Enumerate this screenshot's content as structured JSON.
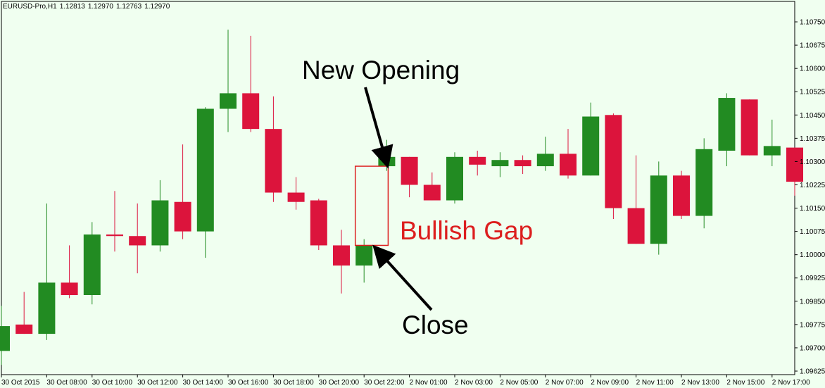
{
  "header": {
    "symbol": "EURUSD-Pro,H1",
    "open": "1.12813",
    "high": "1.12970",
    "low": "1.12763",
    "close": "1.12970"
  },
  "colors": {
    "background": "#f0fff0",
    "bull": "#228b22",
    "bear": "#dc143c",
    "axis": "#000000",
    "gap_box": "#dc1e1e"
  },
  "chart_data": {
    "type": "candlestick",
    "ylim": [
      1.09625,
      1.108
    ],
    "y_ticks": [
      "1.10750",
      "1.10675",
      "1.10600",
      "1.10525",
      "1.10450",
      "1.10375",
      "1.10300",
      "1.10225",
      "1.10150",
      "1.10075",
      "1.10000",
      "1.09925",
      "1.09850",
      "1.09775",
      "1.09700",
      "1.09625"
    ],
    "x_ticks": [
      "30 Oct 2015",
      "30 Oct 08:00",
      "30 Oct 10:00",
      "30 Oct 12:00",
      "30 Oct 14:00",
      "30 Oct 16:00",
      "30 Oct 18:00",
      "30 Oct 20:00",
      "30 Oct 22:00",
      "2 Nov 01:00",
      "2 Nov 03:00",
      "2 Nov 05:00",
      "2 Nov 07:00",
      "2 Nov 09:00",
      "2 Nov 11:00",
      "2 Nov 13:00",
      "2 Nov 15:00",
      "2 Nov 17:00"
    ],
    "candles": [
      {
        "o": 1.0969,
        "h": 1.09835,
        "l": 1.09645,
        "c": 1.0977
      },
      {
        "o": 1.09775,
        "h": 1.0988,
        "l": 1.09745,
        "c": 1.09745
      },
      {
        "o": 1.09745,
        "h": 1.10165,
        "l": 1.09725,
        "c": 1.0991
      },
      {
        "o": 1.0991,
        "h": 1.1003,
        "l": 1.0986,
        "c": 1.0987
      },
      {
        "o": 1.0987,
        "h": 1.10105,
        "l": 1.0984,
        "c": 1.10065
      },
      {
        "o": 1.10065,
        "h": 1.10205,
        "l": 1.1001,
        "c": 1.1006
      },
      {
        "o": 1.1006,
        "h": 1.10165,
        "l": 1.0994,
        "c": 1.1003
      },
      {
        "o": 1.1003,
        "h": 1.1024,
        "l": 1.1001,
        "c": 1.10175
      },
      {
        "o": 1.1017,
        "h": 1.10355,
        "l": 1.1005,
        "c": 1.10075
      },
      {
        "o": 1.10075,
        "h": 1.10475,
        "l": 1.0999,
        "c": 1.1047
      },
      {
        "o": 1.1047,
        "h": 1.10725,
        "l": 1.10395,
        "c": 1.1052
      },
      {
        "o": 1.1052,
        "h": 1.10705,
        "l": 1.10395,
        "c": 1.10405
      },
      {
        "o": 1.10405,
        "h": 1.1051,
        "l": 1.1017,
        "c": 1.102
      },
      {
        "o": 1.102,
        "h": 1.1025,
        "l": 1.10145,
        "c": 1.1017
      },
      {
        "o": 1.10175,
        "h": 1.1018,
        "l": 1.10015,
        "c": 1.1003
      },
      {
        "o": 1.1003,
        "h": 1.1008,
        "l": 1.09875,
        "c": 1.09965
      },
      {
        "o": 1.09965,
        "h": 1.1005,
        "l": 1.0991,
        "c": 1.1003
      },
      {
        "o": 1.10285,
        "h": 1.1037,
        "l": 1.1027,
        "c": 1.10315
      },
      {
        "o": 1.10315,
        "h": 1.10315,
        "l": 1.10185,
        "c": 1.10225
      },
      {
        "o": 1.10225,
        "h": 1.10265,
        "l": 1.10175,
        "c": 1.10175
      },
      {
        "o": 1.10175,
        "h": 1.1033,
        "l": 1.10165,
        "c": 1.10315
      },
      {
        "o": 1.10315,
        "h": 1.10335,
        "l": 1.10255,
        "c": 1.1029
      },
      {
        "o": 1.10285,
        "h": 1.1033,
        "l": 1.1025,
        "c": 1.10305
      },
      {
        "o": 1.10305,
        "h": 1.1032,
        "l": 1.1026,
        "c": 1.10285
      },
      {
        "o": 1.10285,
        "h": 1.1038,
        "l": 1.1027,
        "c": 1.10325
      },
      {
        "o": 1.10325,
        "h": 1.10405,
        "l": 1.10245,
        "c": 1.10255
      },
      {
        "o": 1.10255,
        "h": 1.1049,
        "l": 1.10255,
        "c": 1.10445
      },
      {
        "o": 1.1045,
        "h": 1.10455,
        "l": 1.10115,
        "c": 1.1015
      },
      {
        "o": 1.1015,
        "h": 1.1032,
        "l": 1.10035,
        "c": 1.10035
      },
      {
        "o": 1.10035,
        "h": 1.103,
        "l": 1.1,
        "c": 1.10255
      },
      {
        "o": 1.10255,
        "h": 1.1027,
        "l": 1.10115,
        "c": 1.10125
      },
      {
        "o": 1.10125,
        "h": 1.10375,
        "l": 1.10085,
        "c": 1.1034
      },
      {
        "o": 1.10335,
        "h": 1.1052,
        "l": 1.10285,
        "c": 1.10505
      },
      {
        "o": 1.105,
        "h": 1.105,
        "l": 1.1032,
        "c": 1.1032
      },
      {
        "o": 1.1032,
        "h": 1.10435,
        "l": 1.10285,
        "c": 1.1035
      },
      {
        "o": 1.10345,
        "h": 1.10345,
        "l": 1.1019,
        "c": 1.10235
      }
    ],
    "annotations": {
      "new_opening": "New Opening",
      "close": "Close",
      "bullish_gap": "Bullish Gap"
    },
    "gap_box": {
      "candle_from": 16,
      "candle_to": 17,
      "bottom": 1.1003,
      "top": 1.10285
    }
  }
}
